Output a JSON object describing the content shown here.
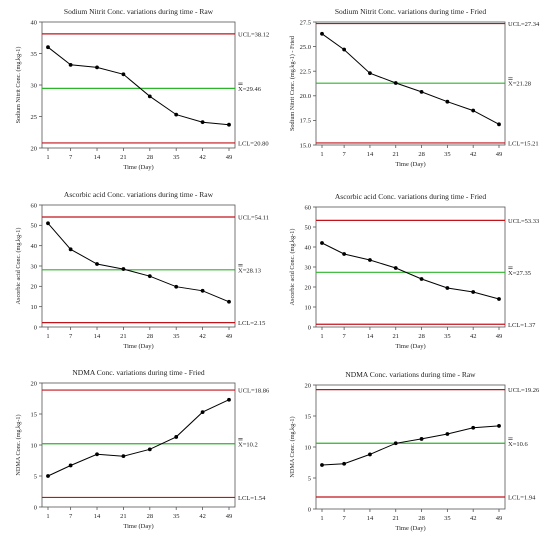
{
  "chart_data": [
    {
      "type": "line",
      "title": "Sodium Nitrit Conc. variations during time - Raw",
      "xlabel": "Time (Day)",
      "ylabel": "Sodium Nitrit Conc. (mg.kg-1)",
      "x": [
        1,
        7,
        14,
        21,
        28,
        35,
        42,
        49
      ],
      "series": [
        {
          "values": [
            36.0,
            33.2,
            32.8,
            31.7,
            28.2,
            25.3,
            24.1,
            23.7
          ]
        }
      ],
      "ylim": [
        20,
        40
      ],
      "yticks": [
        20,
        25,
        30,
        35,
        40
      ],
      "ytick_labels": [
        "20",
        "25",
        "30",
        "35",
        "40"
      ],
      "control_limits": {
        "ucl": 38.12,
        "center": 29.46,
        "lcl": 20.8
      },
      "limit_labels": {
        "ucl": "UCL=38.12",
        "center": "X=29.46",
        "lcl": "LCL=20.80"
      },
      "colors": {
        "limits": "#c0141b",
        "center": "#2bb52b",
        "data": "#000000"
      },
      "grid": false
    },
    {
      "type": "line",
      "title": "Sodium Nitrit Conc. variations during time - Fried",
      "xlabel": "Time (Day)",
      "ylabel": "Sodium Nitrit Conc. (mg.kg-1) - Fried",
      "x": [
        1,
        7,
        14,
        21,
        28,
        35,
        42,
        49
      ],
      "series": [
        {
          "values": [
            26.3,
            24.7,
            22.3,
            21.3,
            20.4,
            19.4,
            18.5,
            17.1
          ]
        }
      ],
      "ylim": [
        15,
        27.5
      ],
      "yticks": [
        15,
        17.5,
        20,
        22.5,
        25,
        27.5
      ],
      "ytick_labels": [
        "15.0",
        "17.5",
        "20.0",
        "22.5",
        "25.0",
        "27.5"
      ],
      "control_limits": {
        "ucl": 27.34,
        "center": 21.28,
        "lcl": 15.21
      },
      "limit_labels": {
        "ucl": "UCL=27.34",
        "center": "X=21.28",
        "lcl": "LCL=15.21"
      },
      "colors": {
        "limits": "#c0141b",
        "center": "#2bb52b",
        "data": "#000000"
      },
      "grid": false
    },
    {
      "type": "line",
      "title": "Ascorbic acid Conc. variations during time - Raw",
      "xlabel": "Time (Day)",
      "ylabel": "Ascorbic acid Conc. (mg.kg-1)",
      "x": [
        1,
        7,
        14,
        21,
        28,
        35,
        42,
        49
      ],
      "series": [
        {
          "values": [
            51.0,
            38.2,
            31.0,
            28.5,
            25.0,
            19.8,
            17.8,
            12.4
          ]
        }
      ],
      "ylim": [
        0,
        60
      ],
      "yticks": [
        0,
        10,
        20,
        30,
        40,
        50,
        60
      ],
      "ytick_labels": [
        "0",
        "10",
        "20",
        "30",
        "40",
        "50",
        "60"
      ],
      "control_limits": {
        "ucl": 54.11,
        "center": 28.13,
        "lcl": 2.15
      },
      "limit_labels": {
        "ucl": "UCL=54.11",
        "center": "X=28.13",
        "lcl": "LCL=2.15"
      },
      "colors": {
        "limits": "#c0141b",
        "center": "#2bb52b",
        "data": "#000000"
      },
      "grid": false
    },
    {
      "type": "line",
      "title": "Ascorbic acid Conc. variations during time - Fried",
      "xlabel": "Time (Day)",
      "ylabel": "Ascorbic acid Conc. (mg.kg-1)",
      "x": [
        1,
        7,
        14,
        21,
        28,
        35,
        42,
        49
      ],
      "series": [
        {
          "values": [
            42.0,
            36.5,
            33.5,
            29.5,
            24.0,
            19.5,
            17.5,
            14.0
          ]
        }
      ],
      "ylim": [
        0,
        60
      ],
      "yticks": [
        0,
        10,
        20,
        30,
        40,
        50,
        60
      ],
      "ytick_labels": [
        "0",
        "10",
        "20",
        "30",
        "40",
        "50",
        "60"
      ],
      "control_limits": {
        "ucl": 53.33,
        "center": 27.35,
        "lcl": 1.37
      },
      "limit_labels": {
        "ucl": "UCL=53.33",
        "center": "X=27.35",
        "lcl": "LCL=1.37"
      },
      "colors": {
        "limits": "#c0141b",
        "center": "#2bb52b",
        "data": "#000000"
      },
      "grid": false
    },
    {
      "type": "line",
      "title": "NDMA Conc. variations during time - Fried",
      "xlabel": "Time (Day)",
      "ylabel": "NDMA Conc. (mg.kg-1)",
      "x": [
        1,
        7,
        14,
        21,
        28,
        35,
        42,
        49
      ],
      "series": [
        {
          "values": [
            5.0,
            6.7,
            8.5,
            8.2,
            9.3,
            11.3,
            15.3,
            17.3
          ]
        }
      ],
      "ylim": [
        0,
        20
      ],
      "yticks": [
        0,
        5,
        10,
        15,
        20
      ],
      "ytick_labels": [
        "0",
        "5",
        "10",
        "15",
        "20"
      ],
      "control_limits": {
        "ucl": 18.86,
        "center": 10.2,
        "lcl": 1.54
      },
      "limit_labels": {
        "ucl": "UCL=18.86",
        "center": "X=10.2",
        "lcl": "LCL=1.54"
      },
      "colors": {
        "limits": "#c0141b",
        "center": "#2bb52b",
        "data": "#000000"
      },
      "grid": false
    },
    {
      "type": "line",
      "title": "NDMA Conc. variations during time - Raw",
      "xlabel": "Time (Day)",
      "ylabel": "NDMA Conc. (mg.kg-1)",
      "x": [
        1,
        7,
        14,
        21,
        28,
        35,
        42,
        49
      ],
      "series": [
        {
          "values": [
            7.1,
            7.3,
            8.8,
            10.6,
            11.3,
            12.1,
            13.1,
            13.4
          ]
        }
      ],
      "ylim": [
        0,
        20
      ],
      "yticks": [
        0,
        5,
        10,
        15,
        20
      ],
      "ytick_labels": [
        "0",
        "5",
        "10",
        "15",
        "20"
      ],
      "control_limits": {
        "ucl": 19.26,
        "center": 10.6,
        "lcl": 1.94
      },
      "limit_labels": {
        "ucl": "UCL=19.26",
        "center": "X=10.6",
        "lcl": "LCL=1.94"
      },
      "colors": {
        "limits": "#c0141b",
        "center": "#2bb52b",
        "data": "#000000"
      },
      "grid": false
    }
  ]
}
